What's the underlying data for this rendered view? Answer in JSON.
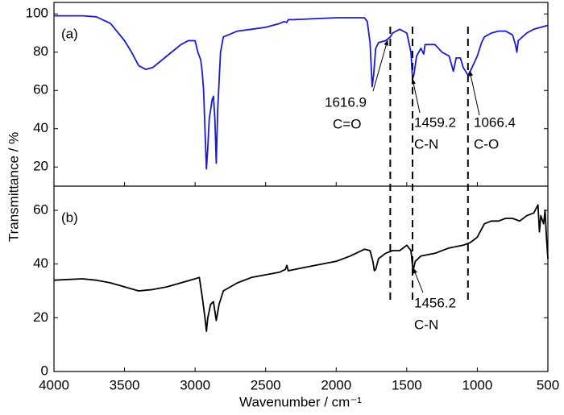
{
  "chart_data": [
    {
      "type": "line",
      "label": "(a)",
      "ylabel": "Transmittance / %",
      "xlim": [
        4000,
        500
      ],
      "ylim": [
        10,
        106
      ],
      "yticks": [
        20,
        40,
        60,
        80,
        100
      ],
      "dashed_lines": true,
      "x": [
        4000,
        3800,
        3700,
        3600,
        3500,
        3450,
        3400,
        3350,
        3300,
        3200,
        3100,
        3050,
        3000,
        2980,
        2960,
        2950,
        2940,
        2930,
        2920,
        2910,
        2900,
        2880,
        2870,
        2860,
        2850,
        2840,
        2820,
        2800,
        2700,
        2600,
        2500,
        2400,
        2370,
        2350,
        2340,
        2300,
        2000,
        1800,
        1780,
        1760,
        1745,
        1735,
        1720,
        1700,
        1650,
        1617,
        1600,
        1550,
        1500,
        1470,
        1459,
        1450,
        1430,
        1400,
        1380,
        1370,
        1300,
        1250,
        1200,
        1170,
        1150,
        1120,
        1100,
        1066,
        1050,
        1000,
        970,
        950,
        900,
        850,
        800,
        750,
        730,
        720,
        710,
        650,
        600,
        550,
        500
      ],
      "series": [
        {
          "name": "(a)",
          "color": "#1a1ad6",
          "values": [
            99,
            99,
            98.5,
            95,
            86,
            80,
            73,
            71,
            72,
            78,
            84,
            86,
            86,
            80,
            76,
            70,
            60,
            40,
            19,
            30,
            45,
            55,
            57,
            45,
            22,
            50,
            80,
            88,
            91,
            92,
            93,
            95,
            96,
            95.5,
            97,
            97,
            98,
            98,
            96,
            85,
            62,
            68,
            82,
            85,
            86,
            88,
            90,
            92,
            90,
            80,
            66,
            68,
            78,
            82,
            79,
            84,
            84,
            80,
            78,
            70,
            77,
            77,
            72,
            68,
            70,
            78,
            85,
            88,
            90,
            91,
            91,
            89,
            84,
            80,
            86,
            90,
            92,
            93,
            94
          ]
        }
      ],
      "annotations": [
        {
          "x": 1616.9,
          "text": "C=O"
        },
        {
          "x": 1459.2,
          "text": "C-N"
        },
        {
          "x": 1066.4,
          "text": "C-O"
        }
      ]
    },
    {
      "type": "line",
      "label": "(b)",
      "xlabel": "Wavenumber / cm⁻¹",
      "xlim": [
        4000,
        500
      ],
      "ylim": [
        0,
        69
      ],
      "yticks": [
        0,
        20,
        40,
        60
      ],
      "xticks": [
        4000,
        3500,
        3000,
        2500,
        2000,
        1500,
        1000,
        500
      ],
      "x": [
        4000,
        3800,
        3700,
        3600,
        3500,
        3400,
        3300,
        3200,
        3100,
        3000,
        2970,
        2950,
        2930,
        2920,
        2910,
        2890,
        2870,
        2850,
        2830,
        2800,
        2700,
        2600,
        2500,
        2400,
        2360,
        2350,
        2340,
        2200,
        2000,
        1900,
        1800,
        1760,
        1740,
        1730,
        1720,
        1700,
        1650,
        1600,
        1550,
        1500,
        1470,
        1456,
        1440,
        1400,
        1300,
        1200,
        1100,
        1050,
        1000,
        950,
        900,
        850,
        800,
        750,
        700,
        650,
        600,
        570,
        560,
        550,
        530,
        520,
        510,
        500
      ],
      "series": [
        {
          "name": "(b)",
          "color": "#000000",
          "values": [
            34,
            34.5,
            34,
            33,
            31.5,
            30,
            30.5,
            31.5,
            33,
            34.5,
            35,
            28,
            20,
            15,
            20,
            25,
            26,
            19,
            25,
            30,
            33,
            35,
            36,
            37,
            38,
            39.5,
            37.5,
            39,
            41,
            43,
            45.5,
            45,
            41,
            37.5,
            38,
            42,
            44,
            45,
            45,
            47,
            45,
            37.5,
            41,
            43,
            44,
            46,
            47,
            48,
            50,
            55,
            56,
            56,
            57,
            57,
            56,
            58,
            59,
            62,
            52,
            58,
            55,
            60,
            50,
            42
          ]
        }
      ],
      "annotations": [
        {
          "x": 1456.2,
          "text": "C-N"
        }
      ]
    }
  ]
}
